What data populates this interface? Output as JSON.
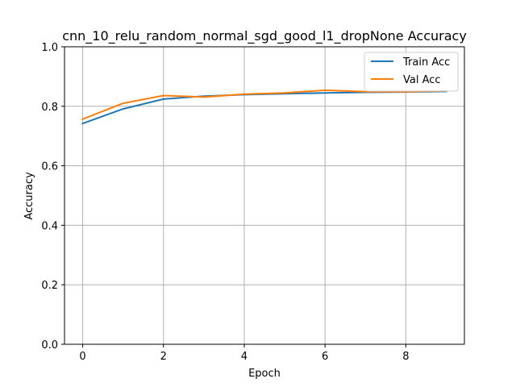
{
  "chart_data": {
    "type": "line",
    "title": "cnn_10_relu_random_normal_sgd_good_l1_dropNone Accuracy",
    "xlabel": "Epoch",
    "ylabel": "Accuracy",
    "x": [
      0,
      1,
      2,
      3,
      4,
      5,
      6,
      7,
      8,
      9
    ],
    "xlim": [
      -0.45,
      9.45
    ],
    "ylim": [
      0.0,
      1.0
    ],
    "xticks": [
      0,
      2,
      4,
      6,
      8
    ],
    "yticks": [
      0.0,
      0.2,
      0.4,
      0.6,
      0.8,
      1.0
    ],
    "xtick_labels": [
      "0",
      "2",
      "4",
      "6",
      "8"
    ],
    "ytick_labels": [
      "0.0",
      "0.2",
      "0.4",
      "0.6",
      "0.8",
      "1.0"
    ],
    "grid": true,
    "legend_position": "top-right",
    "series": [
      {
        "name": "Train Acc",
        "color": "#1f77b4",
        "values": [
          0.742,
          0.791,
          0.824,
          0.834,
          0.839,
          0.842,
          0.845,
          0.847,
          0.848,
          0.85
        ]
      },
      {
        "name": "Val Acc",
        "color": "#ff7f0e",
        "values": [
          0.757,
          0.81,
          0.836,
          0.831,
          0.841,
          0.845,
          0.854,
          0.849,
          0.849,
          0.852
        ]
      }
    ]
  }
}
